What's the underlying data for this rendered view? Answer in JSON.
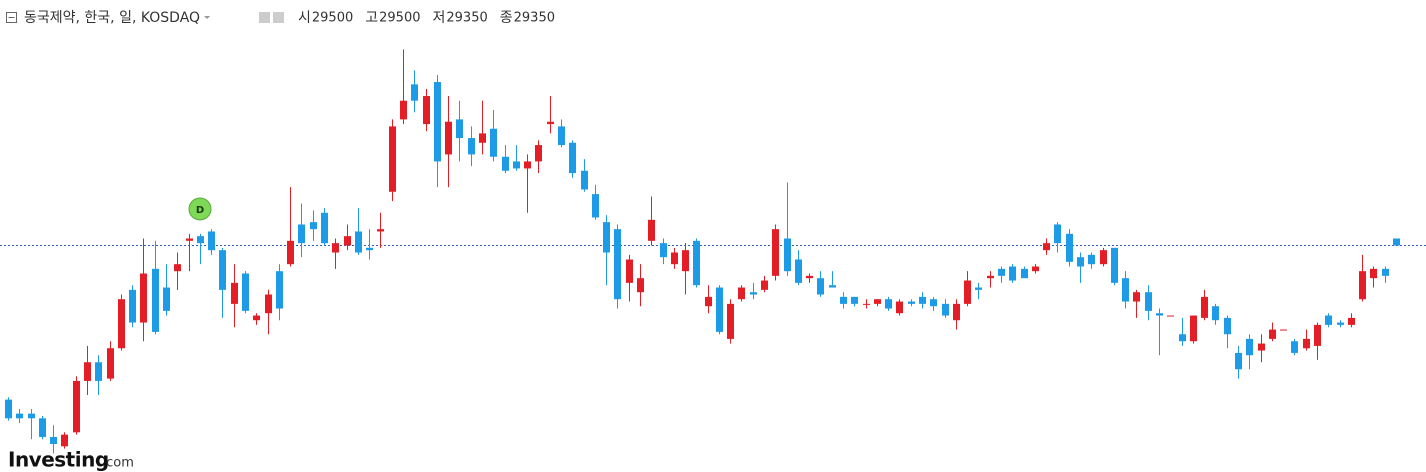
{
  "chart_data": {
    "type": "candlestick",
    "title": "동국제약, 한국, 일, KOSDAQ",
    "ohlc_header": [
      {
        "label": "시",
        "value": 29500
      },
      {
        "label": "고",
        "value": 29500
      },
      {
        "label": "저",
        "value": 29350
      },
      {
        "label": "종",
        "value": 29350
      }
    ],
    "annotation": "D",
    "logo": "Investing",
    "logo_suffix": ".com",
    "up_color": "#e31e26",
    "down_color": "#1e9be6",
    "ylim": [
      24500,
      33750
    ],
    "last_price_line": true,
    "open": [
      26050,
      25750,
      25750,
      25650,
      25250,
      25050,
      25350,
      26450,
      26850,
      26500,
      27150,
      28400,
      27700,
      28850,
      28450,
      28800,
      29450,
      29550,
      29650,
      29250,
      28100,
      28750,
      27750,
      27900,
      28800,
      28950,
      29800,
      29850,
      30050,
      29200,
      29350,
      29650,
      29300,
      29650,
      30500,
      32050,
      32800,
      31950,
      32850,
      31300,
      32050,
      31650,
      31550,
      31850,
      31250,
      31150,
      31000,
      31150,
      31950,
      31900,
      31550,
      30950,
      30450,
      29850,
      29700,
      28550,
      28350,
      29450,
      29400,
      28950,
      28800,
      29450,
      28050,
      28450,
      27350,
      28200,
      28350,
      28400,
      28700,
      29500,
      29050,
      28650,
      28650,
      28500,
      28250,
      28250,
      28100,
      28100,
      28200,
      27900,
      28150,
      28250,
      28200,
      28100,
      27750,
      28100,
      28450,
      28650,
      28850,
      28900,
      28850,
      28800,
      29250,
      29800,
      29600,
      29100,
      29150,
      28950,
      29300,
      28650,
      28150,
      28350,
      27900,
      27850,
      27450,
      27300,
      27800,
      28050,
      27800,
      27050,
      27350,
      27100,
      27350,
      27550,
      27300,
      27150,
      27200,
      27850,
      27700,
      27650,
      28200,
      28650,
      28850,
      29500
    ],
    "high": [
      26100,
      25850,
      25850,
      25700,
      25500,
      25350,
      26550,
      27200,
      27000,
      27300,
      28300,
      28500,
      29500,
      29450,
      28950,
      29200,
      29600,
      29600,
      29700,
      29300,
      28950,
      28800,
      27900,
      28400,
      28950,
      30600,
      30250,
      30100,
      30150,
      29500,
      29800,
      30150,
      29700,
      30050,
      32050,
      33550,
      33100,
      32700,
      33000,
      32550,
      32450,
      31900,
      32450,
      32250,
      31500,
      31500,
      31300,
      31600,
      32550,
      32050,
      31600,
      31200,
      30650,
      30000,
      29800,
      29150,
      28950,
      30400,
      29500,
      29300,
      29400,
      29500,
      28500,
      28500,
      28200,
      28500,
      28550,
      28700,
      29800,
      30700,
      29250,
      28750,
      28800,
      28800,
      28350,
      28250,
      28200,
      28200,
      28250,
      28200,
      28200,
      28350,
      28250,
      28200,
      28200,
      28800,
      28550,
      28800,
      28900,
      28950,
      28900,
      28950,
      29500,
      29850,
      29700,
      29200,
      29200,
      29300,
      29300,
      28800,
      28400,
      28500,
      28000,
      27850,
      27800,
      27850,
      28400,
      28100,
      27850,
      27200,
      27450,
      27450,
      27700,
      27550,
      27350,
      27550,
      27700,
      27900,
      27750,
      27900,
      29150,
      28900,
      28900,
      29500
    ],
    "low": [
      25600,
      25550,
      25200,
      25200,
      24900,
      25000,
      25300,
      26150,
      26150,
      26450,
      27100,
      27600,
      27300,
      27450,
      27850,
      28400,
      28800,
      28950,
      29150,
      27800,
      27600,
      27900,
      27650,
      27450,
      27750,
      28900,
      29100,
      29450,
      29350,
      28850,
      29250,
      29150,
      29050,
      29300,
      30300,
      31950,
      32200,
      31800,
      30600,
      30600,
      31150,
      31050,
      31300,
      31150,
      30900,
      30950,
      30050,
      30900,
      31750,
      31450,
      30800,
      30500,
      29900,
      28500,
      28000,
      28150,
      28050,
      29350,
      28950,
      28850,
      28300,
      28450,
      27900,
      27450,
      27250,
      28150,
      28200,
      28350,
      28600,
      28700,
      28500,
      28550,
      28250,
      28450,
      28000,
      28050,
      28000,
      28050,
      27950,
      27850,
      28050,
      28000,
      27950,
      27800,
      27550,
      28050,
      28200,
      28450,
      28550,
      28550,
      28650,
      28750,
      29150,
      29200,
      28900,
      28550,
      28850,
      28900,
      28500,
      28000,
      27800,
      27750,
      27000,
      27850,
      27200,
      27250,
      27750,
      27650,
      27150,
      26500,
      26700,
      26850,
      27300,
      27550,
      27000,
      27100,
      26900,
      27600,
      27600,
      27600,
      28150,
      28450,
      28550,
      29350
    ],
    "close": [
      25650,
      25650,
      25650,
      25250,
      25100,
      25300,
      26450,
      26850,
      26450,
      27150,
      28200,
      27700,
      28750,
      27500,
      27950,
      28950,
      29500,
      29400,
      29250,
      28400,
      28550,
      27950,
      27850,
      28300,
      28000,
      29450,
      29400,
      29700,
      29400,
      29400,
      29550,
      29200,
      29250,
      29700,
      31900,
      32450,
      32450,
      32550,
      31150,
      32000,
      31650,
      31300,
      31750,
      31250,
      30950,
      31000,
      31150,
      31500,
      32000,
      31500,
      30900,
      30550,
      29950,
      29200,
      28200,
      29050,
      28650,
      29900,
      29100,
      29200,
      29250,
      28500,
      28250,
      27500,
      28100,
      28450,
      28300,
      28600,
      29700,
      28800,
      28550,
      28700,
      28300,
      28450,
      28100,
      28100,
      28100,
      28200,
      28000,
      28150,
      28100,
      28100,
      28050,
      27850,
      28100,
      28600,
      28400,
      28700,
      28700,
      28600,
      28650,
      28900,
      29400,
      29400,
      29000,
      28900,
      28950,
      29250,
      28550,
      28150,
      28350,
      27950,
      27850,
      27850,
      27300,
      27850,
      28250,
      27750,
      27450,
      26700,
      27000,
      27250,
      27550,
      27550,
      27050,
      27350,
      27650,
      27650,
      27650,
      27800,
      28800,
      28850,
      28700,
      29350
    ]
  }
}
